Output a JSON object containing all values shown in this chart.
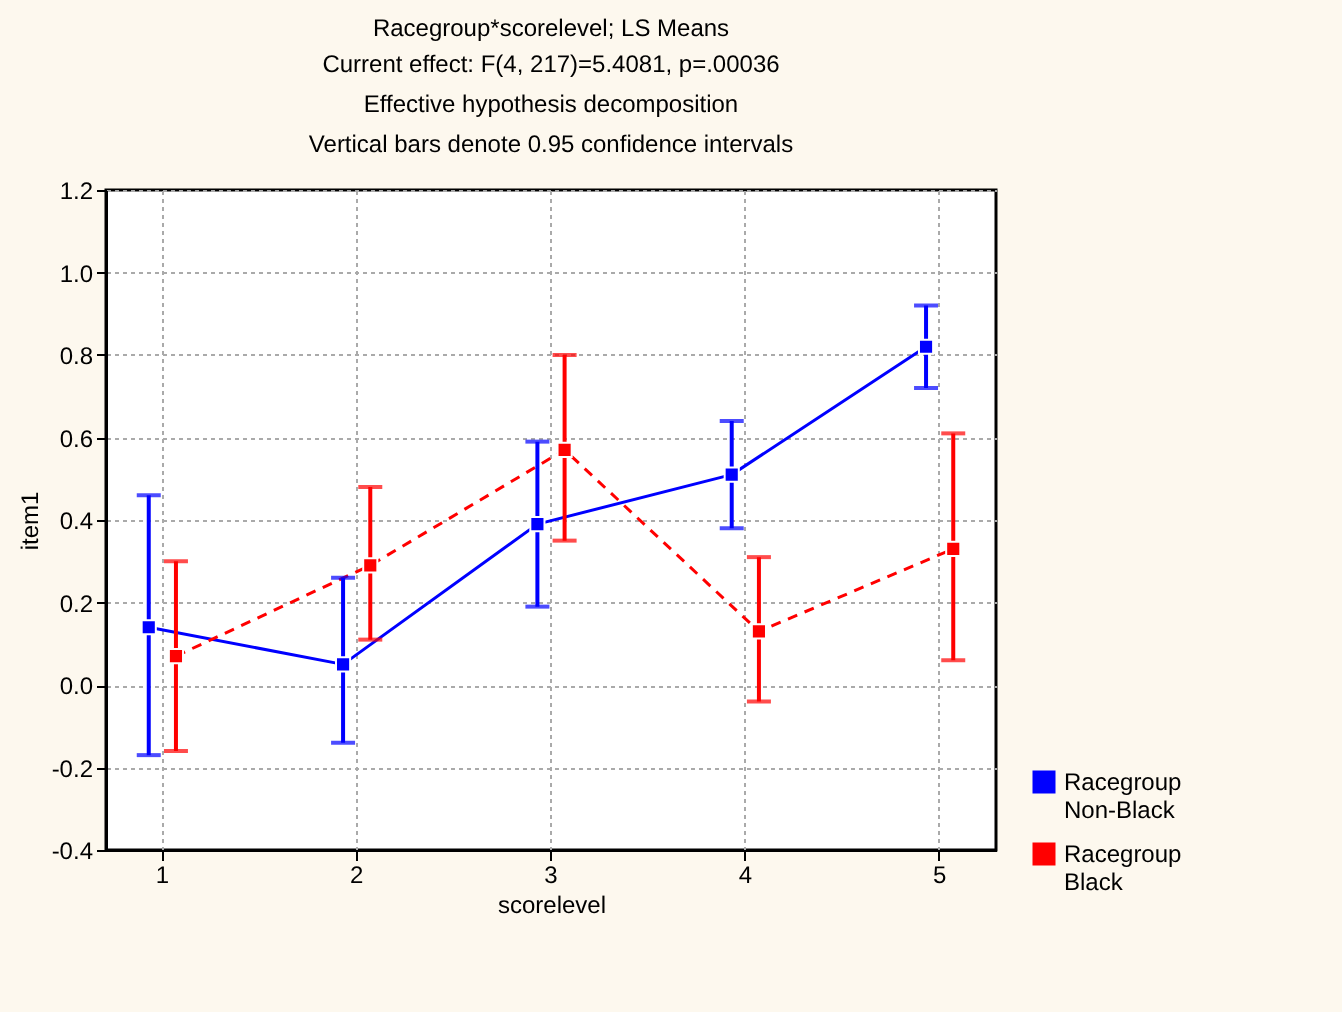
{
  "chart_data": {
    "type": "line",
    "title": "Racegroup*scorelevel; LS Means",
    "subtitle": "Current effect: F(4, 217)=5.4081, p=.00036",
    "annotations": [
      "Effective hypothesis decomposition",
      "Vertical bars denote 0.95 confidence intervals"
    ],
    "xlabel": "scorelevel",
    "ylabel": "item1",
    "categories": [
      "1",
      "2",
      "3",
      "4",
      "5"
    ],
    "series": [
      {
        "name": "Racegroup Non-Black",
        "color": "#0000ff",
        "line_style": "solid",
        "values": [
          0.14,
          0.05,
          0.39,
          0.51,
          0.82
        ],
        "errors": [
          [
            -0.17,
            0.46
          ],
          [
            -0.14,
            0.26
          ],
          [
            0.19,
            0.59
          ],
          [
            0.38,
            0.64
          ],
          [
            0.72,
            0.92
          ]
        ]
      },
      {
        "name": "Racegroup Black",
        "color": "#ff0000",
        "line_style": "dashed",
        "values": [
          0.07,
          0.29,
          0.57,
          0.13,
          0.33
        ],
        "errors": [
          [
            -0.16,
            0.3
          ],
          [
            0.11,
            0.48
          ],
          [
            0.35,
            0.8
          ],
          [
            -0.04,
            0.31
          ],
          [
            0.06,
            0.61
          ]
        ]
      }
    ],
    "ylim": [
      -0.4,
      1.2
    ],
    "yticks": [
      {
        "value": -0.4,
        "label": "-0.4"
      },
      {
        "value": -0.2,
        "label": "-0.2"
      },
      {
        "value": 0,
        "label": "0.0"
      },
      {
        "value": 0.2,
        "label": "0.2"
      },
      {
        "value": 0.4,
        "label": "0.4"
      },
      {
        "value": 0.6,
        "label": "0.6"
      },
      {
        "value": 0.8,
        "label": "0.8"
      },
      {
        "value": 1,
        "label": "1.0"
      },
      {
        "value": 1.2,
        "label": "1.2"
      }
    ],
    "grid": true,
    "legend": "bottom right",
    "marker": "square"
  }
}
